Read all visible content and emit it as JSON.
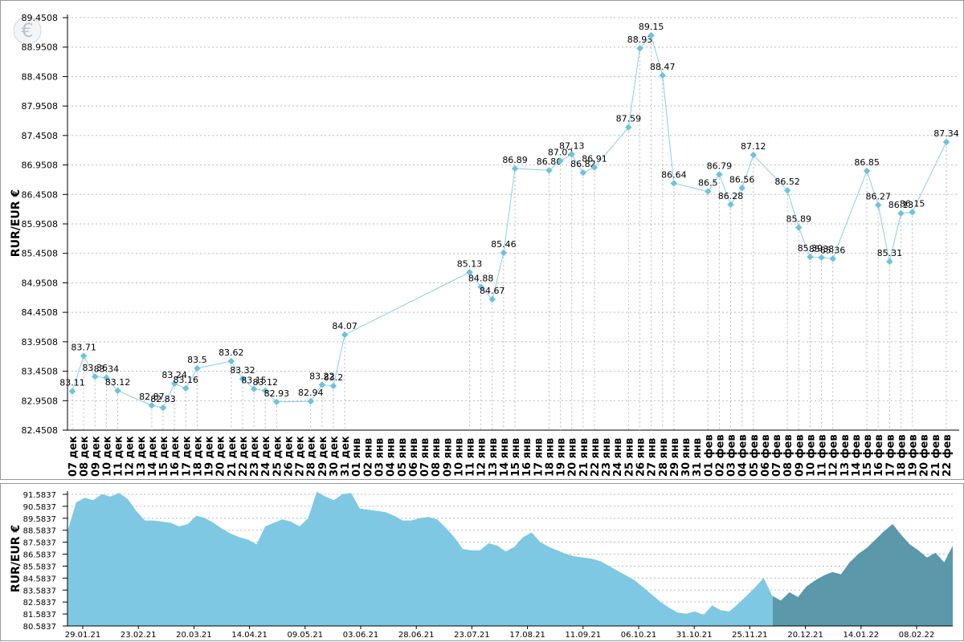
{
  "chart_data": [
    {
      "type": "line",
      "ylabel": "RUR/EUR €",
      "ylim": [
        82.4508,
        89.4508
      ],
      "y_ticks": [
        "82.4508",
        "82.9508",
        "83.4508",
        "83.9508",
        "84.4508",
        "84.9508",
        "85.4508",
        "85.9508",
        "86.4508",
        "86.9508",
        "87.4508",
        "87.9508",
        "88.4508",
        "88.9508",
        "89.4508"
      ],
      "categories": [
        "07 дек",
        "08 дек",
        "09 дек",
        "10 дек",
        "11 дек",
        "12 дек",
        "13 дек",
        "14 дек",
        "15 дек",
        "16 дек",
        "17 дек",
        "18 дек",
        "19 дек",
        "20 дек",
        "21 дек",
        "22 дек",
        "23 дек",
        "24 дек",
        "25 дек",
        "26 дек",
        "27 дек",
        "28 дек",
        "29 дек",
        "30 дек",
        "31 дек",
        "01 янв",
        "02 янв",
        "03 янв",
        "04 янв",
        "05 янв",
        "06 янв",
        "07 янв",
        "08 янв",
        "09 янв",
        "10 янв",
        "11 янв",
        "12 янв",
        "13 янв",
        "14 янв",
        "15 янв",
        "16 янв",
        "17 янв",
        "18 янв",
        "19 янв",
        "20 янв",
        "21 янв",
        "22 янв",
        "23 янв",
        "24 янв",
        "25 янв",
        "26 янв",
        "27 янв",
        "28 янв",
        "29 янв",
        "30 янв",
        "31 янв",
        "01 фев",
        "02 фев",
        "03 фев",
        "04 фев",
        "05 фев",
        "06 фев",
        "07 фев",
        "08 фев",
        "09 фев",
        "10 фев",
        "11 фев",
        "12 фев",
        "13 фев",
        "14 фев",
        "15 фев",
        "16 фев",
        "17 фев",
        "18 фев",
        "19 фев",
        "20 фев",
        "21 фев",
        "22 фев"
      ],
      "points": [
        {
          "x": "07 дек",
          "y": 83.11,
          "label": "83.11"
        },
        {
          "x": "08 дек",
          "y": 83.71,
          "label": "83.71"
        },
        {
          "x": "09 дек",
          "y": 83.36,
          "label": "83.36"
        },
        {
          "x": "10 дек",
          "y": 83.34,
          "label": "83.34"
        },
        {
          "x": "11 дек",
          "y": 83.12,
          "label": "83.12"
        },
        {
          "x": "14 дек",
          "y": 82.87,
          "label": "82.87"
        },
        {
          "x": "15 дек",
          "y": 82.83,
          "label": "82.83"
        },
        {
          "x": "16 дек",
          "y": 83.24,
          "label": "83.24"
        },
        {
          "x": "17 дек",
          "y": 83.16,
          "label": "83.16"
        },
        {
          "x": "18 дек",
          "y": 83.5,
          "label": "83.5"
        },
        {
          "x": "21 дек",
          "y": 83.62,
          "label": "83.62"
        },
        {
          "x": "22 дек",
          "y": 83.32,
          "label": "83.32"
        },
        {
          "x": "23 дек",
          "y": 83.15,
          "label": "83.15"
        },
        {
          "x": "24 дек",
          "y": 83.12,
          "label": "83.12"
        },
        {
          "x": "25 дек",
          "y": 82.93,
          "label": "82.93"
        },
        {
          "x": "28 дек",
          "y": 82.94,
          "label": "82.94"
        },
        {
          "x": "29 дек",
          "y": 83.22,
          "label": "83.22"
        },
        {
          "x": "30 дек",
          "y": 83.2,
          "label": "83.2"
        },
        {
          "x": "31 дек",
          "y": 84.07,
          "label": "84.07"
        },
        {
          "x": "11 янв",
          "y": 85.13,
          "label": "85.13"
        },
        {
          "x": "12 янв",
          "y": 84.88,
          "label": "84.88"
        },
        {
          "x": "13 янв",
          "y": 84.67,
          "label": "84.67"
        },
        {
          "x": "14 янв",
          "y": 85.46,
          "label": "85.46"
        },
        {
          "x": "15 янв",
          "y": 86.89,
          "label": "86.89"
        },
        {
          "x": "18 янв",
          "y": 86.86,
          "label": "86.86"
        },
        {
          "x": "19 янв",
          "y": 87.02,
          "label": "87.02"
        },
        {
          "x": "20 янв",
          "y": 87.13,
          "label": "87.13"
        },
        {
          "x": "21 янв",
          "y": 86.82,
          "label": "86.82"
        },
        {
          "x": "22 янв",
          "y": 86.91,
          "label": "86.91"
        },
        {
          "x": "25 янв",
          "y": 87.59,
          "label": "87.59"
        },
        {
          "x": "26 янв",
          "y": 88.93,
          "label": "88.93"
        },
        {
          "x": "27 янв",
          "y": 89.15,
          "label": "89.15"
        },
        {
          "x": "28 янв",
          "y": 88.47,
          "label": "88.47"
        },
        {
          "x": "29 янв",
          "y": 86.64,
          "label": "86.64"
        },
        {
          "x": "01 фев",
          "y": 86.5,
          "label": "86.5"
        },
        {
          "x": "02 фев",
          "y": 86.79,
          "label": "86.79"
        },
        {
          "x": "03 фев",
          "y": 86.28,
          "label": "86.28"
        },
        {
          "x": "04 фев",
          "y": 86.56,
          "label": "86.56"
        },
        {
          "x": "05 фев",
          "y": 87.12,
          "label": "87.12"
        },
        {
          "x": "08 фев",
          "y": 86.52,
          "label": "86.52"
        },
        {
          "x": "09 фев",
          "y": 85.89,
          "label": "85.89"
        },
        {
          "x": "10 фев",
          "y": 85.39,
          "label": "85.39"
        },
        {
          "x": "11 фев",
          "y": 85.38,
          "label": "85.38"
        },
        {
          "x": "12 фев",
          "y": 85.36,
          "label": "85.36"
        },
        {
          "x": "15 фев",
          "y": 86.85,
          "label": "86.85"
        },
        {
          "x": "16 фев",
          "y": 86.27,
          "label": "86.27"
        },
        {
          "x": "17 фев",
          "y": 85.31,
          "label": "85.31"
        },
        {
          "x": "18 фев",
          "y": 86.13,
          "label": "86.13"
        },
        {
          "x": "19 фев",
          "y": 86.15,
          "label": "86.15"
        },
        {
          "x": "22 фев",
          "y": 87.34,
          "label": "87.34"
        }
      ],
      "grid": true,
      "line_color": "#87CEEB",
      "marker_color": "#6EC3DC"
    },
    {
      "type": "area",
      "ylabel": "RUR/EUR €",
      "ylim": [
        80.5837,
        91.5837
      ],
      "y_ticks": [
        "80.5837",
        "81.5837",
        "82.5837",
        "83.5837",
        "84.5837",
        "85.5837",
        "86.5837",
        "87.5837",
        "88.5837",
        "89.5837",
        "90.5837",
        "91.5837"
      ],
      "x_ticks": [
        "29.01.21",
        "23.02.21",
        "20.03.21",
        "14.04.21",
        "09.05.21",
        "03.06.21",
        "28.06.21",
        "23.07.21",
        "17.08.21",
        "11.09.21",
        "06.10.21",
        "31.10.21",
        "25.11.21",
        "20.12.21",
        "14.01.22",
        "08.02.22"
      ],
      "values": [
        88.5,
        90.9,
        91.3,
        91.1,
        91.6,
        91.4,
        91.7,
        91.2,
        90.2,
        89.4,
        89.4,
        89.3,
        89.2,
        88.9,
        89.1,
        89.8,
        89.6,
        89.2,
        88.7,
        88.3,
        88.0,
        87.8,
        87.4,
        88.9,
        89.2,
        89.5,
        89.3,
        88.9,
        89.6,
        91.8,
        91.4,
        91.1,
        91.6,
        91.7,
        90.4,
        90.3,
        90.2,
        90.1,
        89.8,
        89.4,
        89.4,
        89.6,
        89.7,
        89.5,
        88.8,
        88.0,
        87.0,
        86.9,
        86.9,
        87.5,
        87.3,
        86.8,
        87.2,
        88.0,
        88.4,
        87.6,
        87.2,
        86.9,
        86.6,
        86.4,
        86.3,
        86.2,
        86.0,
        85.6,
        85.2,
        84.8,
        84.4,
        83.8,
        83.2,
        82.6,
        82.1,
        81.7,
        81.6,
        81.8,
        81.5,
        82.3,
        81.9,
        81.8,
        82.4,
        83.1,
        83.8,
        84.6,
        83.1,
        82.7,
        83.4,
        83.0,
        83.9,
        84.4,
        84.8,
        85.1,
        84.9,
        85.9,
        86.6,
        87.1,
        87.8,
        88.5,
        89.1,
        88.2,
        87.4,
        86.9,
        86.3,
        86.7,
        85.9,
        87.3
      ],
      "selected_range": [
        "20.12.21",
        "22.02.21"
      ],
      "fill_color": "#7EC8E3",
      "selected_fill_color": "#5A98AA"
    }
  ],
  "logo": {
    "name": "euro-logo-icon",
    "glyph": "€"
  }
}
